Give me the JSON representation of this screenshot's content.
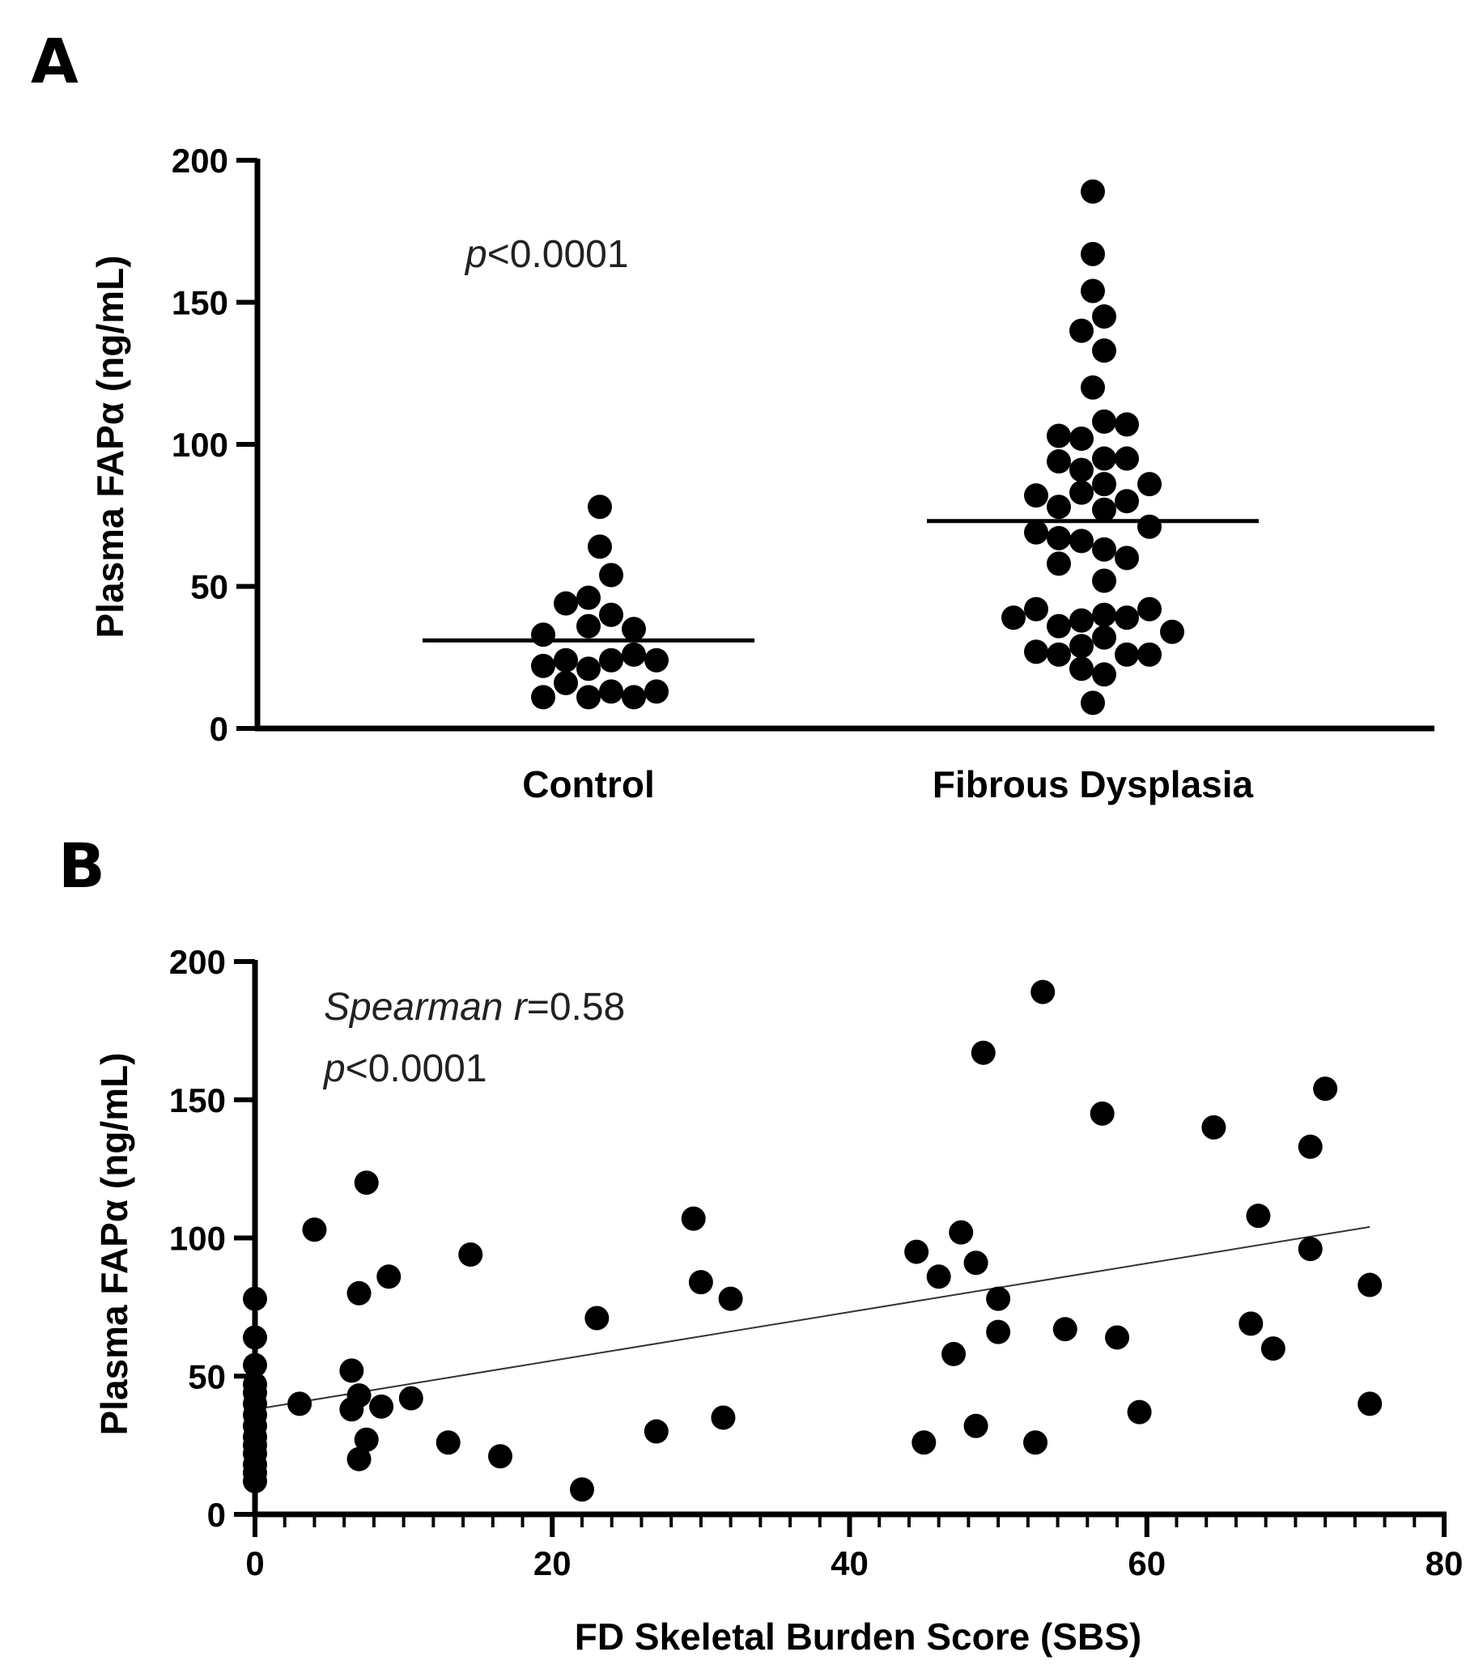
{
  "chart_data": [
    {
      "panel": "A",
      "type": "scatter",
      "subtype": "dot-plot with mean lines",
      "ylabel": "Plasma FAPα (ng/mL)",
      "xlabel": "",
      "ylim": [
        0,
        200
      ],
      "yticks": [
        "0",
        "50",
        "100",
        "150",
        "200"
      ],
      "categories": [
        "Control",
        "Fibrous Dysplasia"
      ],
      "annotation": {
        "p_italic": "p",
        "rest": "<0.0001"
      },
      "groups": [
        {
          "name": "Control",
          "mean": 31,
          "points": [
            {
              "offset": -0.4,
              "y": 11
            },
            {
              "offset": -0.4,
              "y": 22
            },
            {
              "offset": -0.4,
              "y": 33
            },
            {
              "offset": -0.2,
              "y": 16
            },
            {
              "offset": -0.2,
              "y": 24
            },
            {
              "offset": -0.2,
              "y": 44
            },
            {
              "offset": 0.0,
              "y": 11
            },
            {
              "offset": 0.0,
              "y": 21
            },
            {
              "offset": 0.0,
              "y": 36
            },
            {
              "offset": 0.0,
              "y": 46
            },
            {
              "offset": 0.2,
              "y": 13
            },
            {
              "offset": 0.2,
              "y": 24
            },
            {
              "offset": 0.2,
              "y": 40
            },
            {
              "offset": 0.2,
              "y": 54
            },
            {
              "offset": 0.4,
              "y": 11
            },
            {
              "offset": 0.4,
              "y": 26
            },
            {
              "offset": 0.4,
              "y": 35
            },
            {
              "offset": 0.6,
              "y": 13
            },
            {
              "offset": 0.6,
              "y": 24
            },
            {
              "offset": 0.1,
              "y": 64
            },
            {
              "offset": 0.1,
              "y": 78
            }
          ]
        },
        {
          "name": "Fibrous Dysplasia",
          "mean": 73,
          "points": [
            {
              "offset": -0.7,
              "y": 39
            },
            {
              "offset": -0.5,
              "y": 27
            },
            {
              "offset": -0.5,
              "y": 42
            },
            {
              "offset": -0.5,
              "y": 69
            },
            {
              "offset": -0.5,
              "y": 82
            },
            {
              "offset": -0.3,
              "y": 26
            },
            {
              "offset": -0.3,
              "y": 36
            },
            {
              "offset": -0.3,
              "y": 58
            },
            {
              "offset": -0.3,
              "y": 67
            },
            {
              "offset": -0.3,
              "y": 78
            },
            {
              "offset": -0.3,
              "y": 94
            },
            {
              "offset": -0.3,
              "y": 103
            },
            {
              "offset": -0.1,
              "y": 21
            },
            {
              "offset": -0.1,
              "y": 29
            },
            {
              "offset": -0.1,
              "y": 38
            },
            {
              "offset": -0.1,
              "y": 66
            },
            {
              "offset": -0.1,
              "y": 83
            },
            {
              "offset": -0.1,
              "y": 91
            },
            {
              "offset": -0.1,
              "y": 102
            },
            {
              "offset": -0.1,
              "y": 140
            },
            {
              "offset": 0.0,
              "y": 9
            },
            {
              "offset": 0.0,
              "y": 120
            },
            {
              "offset": 0.0,
              "y": 154
            },
            {
              "offset": 0.0,
              "y": 167
            },
            {
              "offset": 0.0,
              "y": 189
            },
            {
              "offset": 0.1,
              "y": 19
            },
            {
              "offset": 0.1,
              "y": 32
            },
            {
              "offset": 0.1,
              "y": 40
            },
            {
              "offset": 0.1,
              "y": 52
            },
            {
              "offset": 0.1,
              "y": 63
            },
            {
              "offset": 0.1,
              "y": 77
            },
            {
              "offset": 0.1,
              "y": 86
            },
            {
              "offset": 0.1,
              "y": 95
            },
            {
              "offset": 0.1,
              "y": 108
            },
            {
              "offset": 0.1,
              "y": 133
            },
            {
              "offset": 0.1,
              "y": 145
            },
            {
              "offset": 0.3,
              "y": 26
            },
            {
              "offset": 0.3,
              "y": 39
            },
            {
              "offset": 0.3,
              "y": 60
            },
            {
              "offset": 0.3,
              "y": 80
            },
            {
              "offset": 0.3,
              "y": 95
            },
            {
              "offset": 0.3,
              "y": 107
            },
            {
              "offset": 0.5,
              "y": 26
            },
            {
              "offset": 0.5,
              "y": 42
            },
            {
              "offset": 0.5,
              "y": 71
            },
            {
              "offset": 0.5,
              "y": 86
            },
            {
              "offset": 0.7,
              "y": 34
            }
          ]
        }
      ]
    },
    {
      "panel": "B",
      "type": "scatter",
      "xlabel": "FD Skeletal Burden Score (SBS)",
      "ylabel": "Plasma FAPα (ng/mL)",
      "xlim": [
        0,
        80
      ],
      "ylim": [
        0,
        200
      ],
      "xticks": [
        "0",
        "20",
        "40",
        "60",
        "80"
      ],
      "yticks": [
        "0",
        "50",
        "100",
        "150",
        "200"
      ],
      "annotation": {
        "r_italic": "Spearman r",
        "r_rest": "=0.58",
        "p_italic": "p",
        "p_rest": "<0.0001"
      },
      "fit_line": {
        "x": [
          0,
          75
        ],
        "y": [
          38,
          104
        ]
      },
      "points": [
        {
          "x": 0,
          "y": 12
        },
        {
          "x": 0,
          "y": 15
        },
        {
          "x": 0,
          "y": 18
        },
        {
          "x": 0,
          "y": 22
        },
        {
          "x": 0,
          "y": 25
        },
        {
          "x": 0,
          "y": 28
        },
        {
          "x": 0,
          "y": 32
        },
        {
          "x": 0,
          "y": 36
        },
        {
          "x": 0,
          "y": 40
        },
        {
          "x": 0,
          "y": 44
        },
        {
          "x": 0,
          "y": 47
        },
        {
          "x": 0,
          "y": 54
        },
        {
          "x": 0,
          "y": 64
        },
        {
          "x": 0,
          "y": 78
        },
        {
          "x": 3,
          "y": 40
        },
        {
          "x": 4,
          "y": 103
        },
        {
          "x": 6.5,
          "y": 52
        },
        {
          "x": 6.5,
          "y": 38
        },
        {
          "x": 7,
          "y": 43
        },
        {
          "x": 7,
          "y": 80
        },
        {
          "x": 7,
          "y": 20
        },
        {
          "x": 7.5,
          "y": 27
        },
        {
          "x": 7.5,
          "y": 120
        },
        {
          "x": 8.5,
          "y": 39
        },
        {
          "x": 9,
          "y": 86
        },
        {
          "x": 10.5,
          "y": 42
        },
        {
          "x": 13,
          "y": 26
        },
        {
          "x": 14.5,
          "y": 94
        },
        {
          "x": 16.5,
          "y": 21
        },
        {
          "x": 22,
          "y": 9
        },
        {
          "x": 23,
          "y": 71
        },
        {
          "x": 27,
          "y": 30
        },
        {
          "x": 29.5,
          "y": 107
        },
        {
          "x": 30,
          "y": 84
        },
        {
          "x": 31.5,
          "y": 35
        },
        {
          "x": 32,
          "y": 78
        },
        {
          "x": 44.5,
          "y": 95
        },
        {
          "x": 45,
          "y": 26
        },
        {
          "x": 46,
          "y": 86
        },
        {
          "x": 47,
          "y": 58
        },
        {
          "x": 47.5,
          "y": 102
        },
        {
          "x": 48.5,
          "y": 32
        },
        {
          "x": 48.5,
          "y": 91
        },
        {
          "x": 49,
          "y": 167
        },
        {
          "x": 50,
          "y": 78
        },
        {
          "x": 50,
          "y": 66
        },
        {
          "x": 52.5,
          "y": 26
        },
        {
          "x": 53,
          "y": 189
        },
        {
          "x": 54.5,
          "y": 67
        },
        {
          "x": 57,
          "y": 145
        },
        {
          "x": 58,
          "y": 64
        },
        {
          "x": 59.5,
          "y": 37
        },
        {
          "x": 64.5,
          "y": 140
        },
        {
          "x": 67,
          "y": 69
        },
        {
          "x": 67.5,
          "y": 108
        },
        {
          "x": 68.5,
          "y": 60
        },
        {
          "x": 71,
          "y": 133
        },
        {
          "x": 71,
          "y": 96
        },
        {
          "x": 72,
          "y": 154
        },
        {
          "x": 75,
          "y": 83
        },
        {
          "x": 75,
          "y": 40
        }
      ]
    }
  ]
}
